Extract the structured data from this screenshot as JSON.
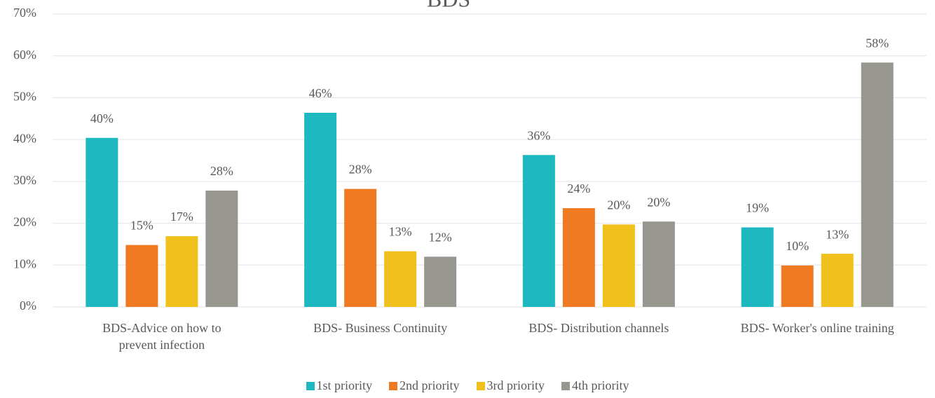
{
  "chart_data": {
    "type": "bar",
    "title": "BDS",
    "categories": [
      "BDS-Advice on how to prevent infection",
      "BDS- Business Continuity",
      "BDS- Distribution channels",
      "BDS- Worker's online training"
    ],
    "series": [
      {
        "name": "1st priority",
        "color": "#1db8c0",
        "values": [
          40.4,
          46.4,
          36.3,
          19.0
        ],
        "value_labels": [
          "40%",
          "46%",
          "36%",
          "19%"
        ]
      },
      {
        "name": "2nd priority",
        "color": "#ef7a22",
        "values": [
          14.8,
          28.2,
          23.6,
          9.9
        ],
        "value_labels": [
          "15%",
          "28%",
          "24%",
          "10%"
        ]
      },
      {
        "name": "3rd priority",
        "color": "#f0c01c",
        "values": [
          16.9,
          13.3,
          19.7,
          12.7
        ],
        "value_labels": [
          "17%",
          "13%",
          "20%",
          "13%"
        ]
      },
      {
        "name": "4th priority",
        "color": "#979790",
        "values": [
          27.8,
          12.0,
          20.4,
          58.4
        ],
        "value_labels": [
          "28%",
          "12%",
          "20%",
          "58%"
        ]
      }
    ],
    "ylim": [
      0,
      70
    ],
    "yticks": [
      {
        "value": 0,
        "label": "0%"
      },
      {
        "value": 10,
        "label": "10%"
      },
      {
        "value": 20,
        "label": "20%"
      },
      {
        "value": 30,
        "label": "30%"
      },
      {
        "value": 40,
        "label": "40%"
      },
      {
        "value": 50,
        "label": "50%"
      },
      {
        "value": 60,
        "label": "60%"
      },
      {
        "value": 70,
        "label": "70%"
      }
    ],
    "grid": true,
    "legend": "bottom"
  }
}
